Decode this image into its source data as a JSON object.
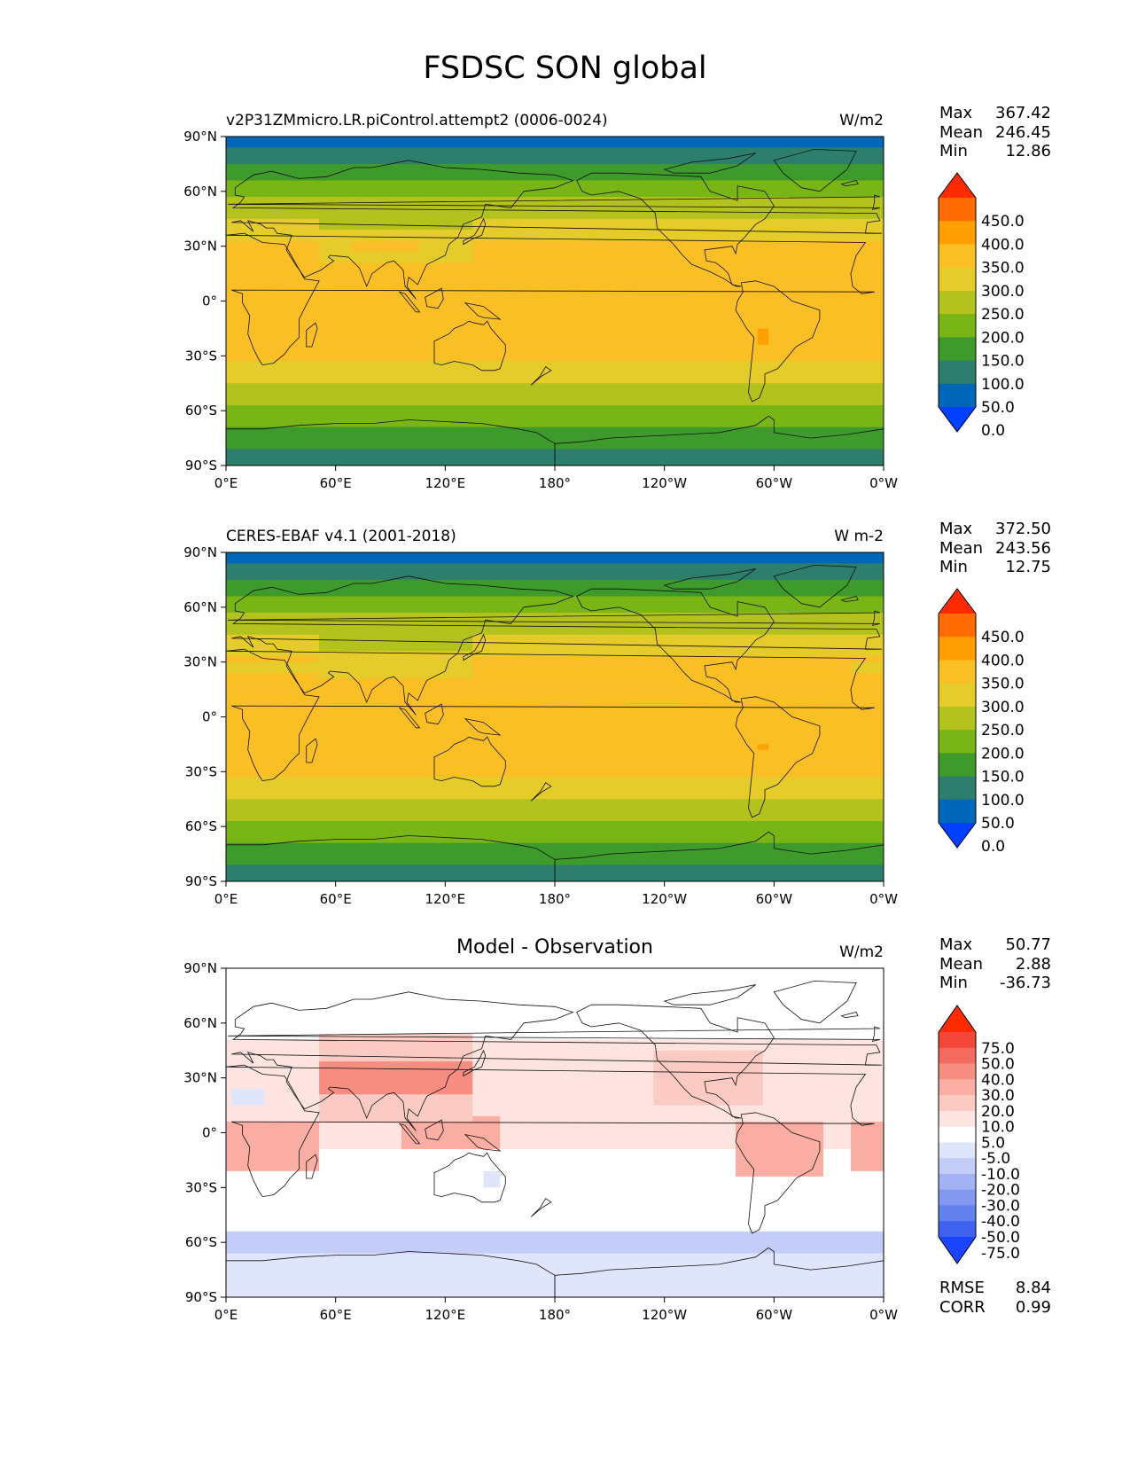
{
  "title": "FSDSC SON global",
  "lon_ticks": [
    "0°E",
    "60°E",
    "120°E",
    "180°",
    "120°W",
    "60°W",
    "0°W"
  ],
  "lat_ticks": [
    "90°N",
    "60°N",
    "30°N",
    "0°",
    "30°S",
    "60°S",
    "90°S"
  ],
  "panels": [
    {
      "left_label": "v2P31ZMmicro.LR.piControl.attempt2 (0006-0024)",
      "center_label": "",
      "units": "W/m2",
      "stats": [
        {
          "k": "Max",
          "v": "367.42"
        },
        {
          "k": "Mean",
          "v": "246.45"
        },
        {
          "k": "Min",
          "v": "12.86"
        }
      ],
      "colorbar": {
        "labels": [
          "450.0",
          "400.0",
          "350.0",
          "300.0",
          "250.0",
          "200.0",
          "150.0",
          "100.0",
          "50.0",
          "0.0"
        ],
        "colors": [
          "#ff2a00",
          "#ff6b00",
          "#ffa000",
          "#fbbf26",
          "#e6cc2a",
          "#b4c21d",
          "#79b515",
          "#3e9a2a",
          "#2d7e6c",
          "#0066b8",
          "#0040ff"
        ]
      },
      "field": "model"
    },
    {
      "left_label": "CERES-EBAF v4.1 (2001-2018)",
      "center_label": "",
      "units": "W m-2",
      "stats": [
        {
          "k": "Max",
          "v": "372.50"
        },
        {
          "k": "Mean",
          "v": "243.56"
        },
        {
          "k": "Min",
          "v": "12.75"
        }
      ],
      "colorbar": {
        "labels": [
          "450.0",
          "400.0",
          "350.0",
          "300.0",
          "250.0",
          "200.0",
          "150.0",
          "100.0",
          "50.0",
          "0.0"
        ],
        "colors": [
          "#ff2a00",
          "#ff6b00",
          "#ffa000",
          "#fbbf26",
          "#e6cc2a",
          "#b4c21d",
          "#79b515",
          "#3e9a2a",
          "#2d7e6c",
          "#0066b8",
          "#0040ff"
        ]
      },
      "field": "obs"
    },
    {
      "left_label": "",
      "center_label": "Model - Observation",
      "units": "W/m2",
      "stats": [
        {
          "k": "Max",
          "v": "50.77"
        },
        {
          "k": "Mean",
          "v": "2.88"
        },
        {
          "k": "Min",
          "v": "-36.73"
        }
      ],
      "extra_stats": [
        {
          "k": "RMSE",
          "v": "8.84"
        },
        {
          "k": "CORR",
          "v": "0.99"
        }
      ],
      "colorbar": {
        "labels": [
          "75.0",
          "50.0",
          "40.0",
          "30.0",
          "20.0",
          "10.0",
          "5.0",
          "-5.0",
          "-10.0",
          "-20.0",
          "-30.0",
          "-40.0",
          "-50.0",
          "-75.0"
        ],
        "colors": [
          "#ff2a00",
          "#f4453a",
          "#f46a5e",
          "#f78c80",
          "#f9ada3",
          "#fbcac3",
          "#fde4e0",
          "#ffffff",
          "#dfe5fb",
          "#c3cdf7",
          "#a3b2f3",
          "#8398ef",
          "#6380ec",
          "#3f62f0",
          "#1a44ff"
        ]
      },
      "field": "diff"
    }
  ]
}
